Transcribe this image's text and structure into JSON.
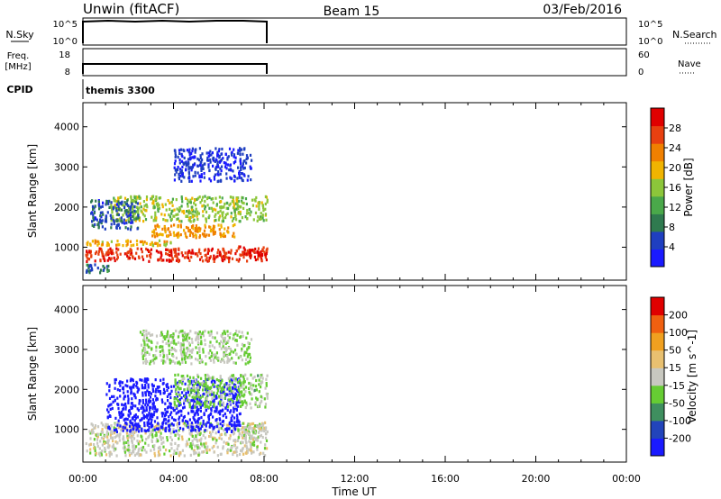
{
  "header": {
    "station": "Unwin (fitACF)",
    "beam": "Beam 15",
    "date": "03/Feb/2016"
  },
  "strip_labels": {
    "nsky": "N.Sky",
    "nsky_ticks": [
      "10^5",
      "10^0"
    ],
    "nsearch": "N.Search",
    "nsearch_ticks": [
      "10^5",
      "10^0"
    ],
    "freq_line1": "Freq.",
    "freq_line2": "[MHz]",
    "freq_ticks": [
      "18",
      "8"
    ],
    "nave": "Nave",
    "nave_ticks": [
      "60",
      "0"
    ],
    "cpid": "CPID",
    "cpid_value": "themis 3300"
  },
  "x_axis": {
    "label": "Time UT",
    "ticks": [
      "00:00",
      "04:00",
      "08:00",
      "12:00",
      "16:00",
      "20:00",
      "00:00"
    ],
    "range_hours": [
      0,
      24
    ]
  },
  "colors": {
    "power_scale": [
      "#1a1aff",
      "#1f3fc0",
      "#2f7a4f",
      "#4aa84a",
      "#8cc63a",
      "#f0b400",
      "#f08000",
      "#e84010",
      "#e00000"
    ],
    "velocity_scale": [
      "#1a1aff",
      "#2244bb",
      "#3f8f5f",
      "#66cc33",
      "#c8c8c0",
      "#e8c070",
      "#f0a020",
      "#f06010",
      "#e00000"
    ]
  },
  "chart_data": [
    {
      "type": "heatmap",
      "title": "",
      "xlabel": "Time UT",
      "ylabel": "Slant Range [km]",
      "xlim": [
        0,
        24
      ],
      "ylim": [
        180,
        4600
      ],
      "yticks": [
        "1000",
        "2000",
        "3000",
        "4000"
      ],
      "colorbar": {
        "label": "Power [dB]",
        "ticks": [
          "28",
          "24",
          "20",
          "16",
          "12",
          "8",
          "4"
        ],
        "range": [
          0,
          32
        ]
      },
      "regions": [
        {
          "t": [
            0.1,
            8.2
          ],
          "r": [
            600,
            1000
          ],
          "level": 28
        },
        {
          "t": [
            0.1,
            4.0
          ],
          "r": [
            1000,
            1200
          ],
          "level": 20
        },
        {
          "t": [
            0.1,
            1.2
          ],
          "r": [
            300,
            600
          ],
          "level": 8
        },
        {
          "t": [
            1.2,
            8.2
          ],
          "r": [
            1600,
            2300
          ],
          "level": 16
        },
        {
          "t": [
            3.0,
            6.8
          ],
          "r": [
            1200,
            1600
          ],
          "level": 22
        },
        {
          "t": [
            6.8,
            8.2
          ],
          "r": [
            750,
            1050
          ],
          "level": 30
        },
        {
          "t": [
            0.3,
            2.5
          ],
          "r": [
            1400,
            2200
          ],
          "level": 6
        },
        {
          "t": [
            4.0,
            7.5
          ],
          "r": [
            2600,
            3500
          ],
          "level": 4
        }
      ]
    },
    {
      "type": "heatmap",
      "title": "",
      "xlabel": "Time UT",
      "ylabel": "Slant Range [km]",
      "xlim": [
        0,
        24
      ],
      "ylim": [
        180,
        4600
      ],
      "yticks": [
        "1000",
        "2000",
        "3000",
        "4000"
      ],
      "colorbar": {
        "label": "Velocity [m s^-1]",
        "ticks": [
          "200",
          "100",
          "50",
          "15",
          "-15",
          "-50",
          "-100",
          "-200"
        ],
        "range": [
          -250,
          250
        ]
      },
      "regions": [
        {
          "t": [
            0.1,
            8.2
          ],
          "r": [
            300,
            1200
          ],
          "level": 0
        },
        {
          "t": [
            1.0,
            7.0
          ],
          "r": [
            900,
            2300
          ],
          "level": -250
        },
        {
          "t": [
            4.0,
            8.2
          ],
          "r": [
            1500,
            2400
          ],
          "level": -40
        },
        {
          "t": [
            6.8,
            8.2
          ],
          "r": [
            700,
            1200
          ],
          "level": 0
        },
        {
          "t": [
            2.5,
            7.5
          ],
          "r": [
            2600,
            3500
          ],
          "level": -30
        }
      ]
    }
  ]
}
